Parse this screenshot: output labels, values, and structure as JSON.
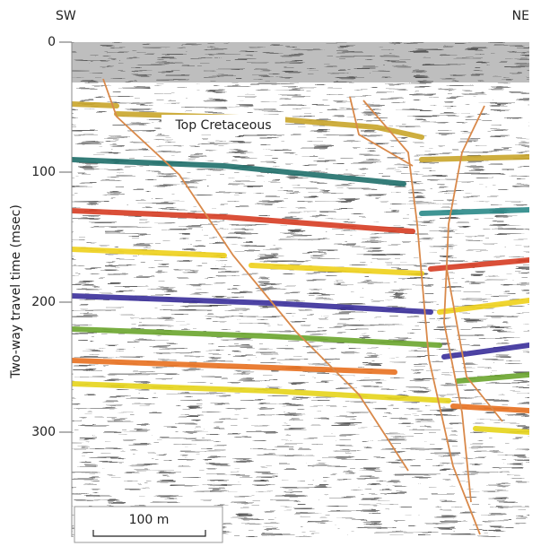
{
  "header": {
    "left": "SW",
    "right": "NE"
  },
  "axis": {
    "label": "Two-way travel time (msec)",
    "ylim": [
      0,
      380
    ],
    "yticks": [
      0,
      100,
      200,
      300
    ]
  },
  "annotation": "Top Cretaceous",
  "scale_bar": "100 m"
}
